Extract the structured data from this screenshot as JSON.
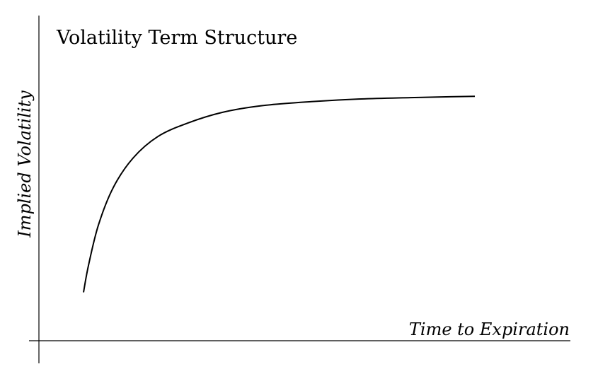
{
  "chart_data": {
    "type": "line",
    "title": "Volatility Term Structure",
    "xlabel": "Time to Expiration",
    "ylabel": "Implied Volatility",
    "xlim": [
      0,
      1
    ],
    "ylim": [
      0,
      1
    ],
    "grid": false,
    "ticks": false,
    "series": [
      {
        "x": [
          0.09,
          0.1,
          0.12,
          0.15,
          0.19,
          0.24,
          0.3,
          0.37,
          0.45,
          0.55,
          0.65,
          0.75,
          0.88
        ],
        "values": [
          0.18,
          0.28,
          0.43,
          0.57,
          0.68,
          0.76,
          0.81,
          0.85,
          0.875,
          0.89,
          0.9,
          0.905,
          0.91
        ]
      }
    ]
  },
  "colors": {
    "background": "#ffffff",
    "ink": "#000000"
  }
}
